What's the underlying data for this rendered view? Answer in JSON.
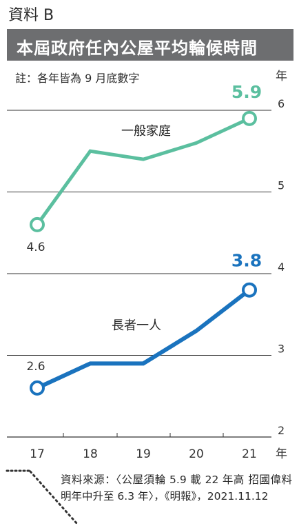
{
  "header": {
    "label": "資料 B",
    "title": "本屆政府任內公屋平均輪候時間",
    "note": "註：各年皆為 9 月底數字"
  },
  "source": "資料來源：〈公屋須輪 5.9 載 22 年高 招國偉料明年中升至 6.3 年〉，《明報》，2021.11.12",
  "colors": {
    "general": "#5bbf9f",
    "elderly": "#1a73be",
    "grid": "#333333",
    "title_bar": "#6d6e70"
  },
  "chart_data": {
    "type": "line",
    "categories": [
      "17",
      "18",
      "19",
      "20",
      "21"
    ],
    "x_unit_label": "年",
    "y_unit_label": "年",
    "ylim": [
      2,
      6
    ],
    "yticks": [
      "2",
      "3",
      "4",
      "5",
      "6"
    ],
    "grid": "horizontal",
    "series": [
      {
        "name": "一般家庭",
        "values": [
          4.6,
          5.5,
          5.4,
          5.6,
          5.9
        ],
        "labels": [
          {
            "index": 0,
            "text": "4.6"
          },
          {
            "index": 4,
            "text": "5.9"
          }
        ]
      },
      {
        "name": "長者一人",
        "values": [
          2.6,
          2.9,
          2.9,
          3.3,
          3.8
        ],
        "labels": [
          {
            "index": 0,
            "text": "2.6"
          },
          {
            "index": 4,
            "text": "3.8"
          }
        ]
      }
    ]
  }
}
